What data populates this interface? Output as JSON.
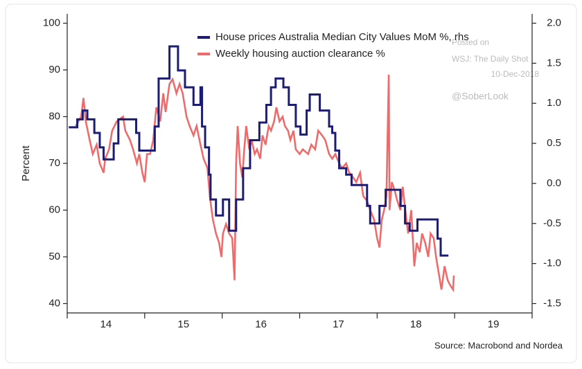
{
  "chart_data": {
    "type": "line",
    "y_label": "Percent",
    "source": "Source: Macrobond and Nordea",
    "annotations": [
      "Posted on",
      "WSJ: The Daily Shot",
      "10-Dec-2018",
      "@SoberLook"
    ],
    "xlim": [
      2014,
      2020
    ],
    "xticks": [
      {
        "value": 2014.5,
        "label": "14"
      },
      {
        "value": 2015.5,
        "label": "15"
      },
      {
        "value": 2016.5,
        "label": "16"
      },
      {
        "value": 2017.5,
        "label": "17"
      },
      {
        "value": 2018.5,
        "label": "18"
      },
      {
        "value": 2019.5,
        "label": "19"
      }
    ],
    "x_boundaries": [
      2014,
      2015,
      2016,
      2017,
      2018,
      2019,
      2020
    ],
    "ylim": [
      38,
      102
    ],
    "yticks": [
      40,
      50,
      60,
      70,
      80,
      90,
      100
    ],
    "y2lim": [
      -1.6167,
      2.1167
    ],
    "y2ticks": [
      {
        "value": -1.5,
        "label": "-1.5"
      },
      {
        "value": -1,
        "label": "-1.0"
      },
      -0.5,
      {
        "value": 0,
        "label": "0.0"
      },
      0.5,
      {
        "value": 1,
        "label": "1.0"
      },
      1.5,
      {
        "value": 2,
        "label": "2.0"
      }
    ],
    "series": [
      {
        "name": "House prices Australia Median City Values MoM %, rhs",
        "color": "#1c1c72",
        "axis": "y2",
        "step": true,
        "x": [
          2014.02,
          2014.13,
          2014.2,
          2014.26,
          2014.35,
          2014.42,
          2014.47,
          2014.6,
          2014.66,
          2014.89,
          2014.93,
          2015.13,
          2015.18,
          2015.32,
          2015.43,
          2015.52,
          2015.63,
          2015.72,
          2015.74,
          2015.78,
          2015.83,
          2015.85,
          2015.92,
          2016.01,
          2016.09,
          2016.18,
          2016.27,
          2016.36,
          2016.48,
          2016.57,
          2016.63,
          2016.69,
          2016.79,
          2016.86,
          2016.95,
          2017.01,
          2017.09,
          2017.13,
          2017.26,
          2017.38,
          2017.42,
          2017.46,
          2017.51,
          2017.6,
          2017.67,
          2017.87,
          2017.91,
          2018.03,
          2018.11,
          2018.3,
          2018.36,
          2018.42,
          2018.52,
          2018.78,
          2018.82,
          2018.92
        ],
        "values": [
          0.7,
          0.8,
          0.91,
          0.8,
          0.63,
          0.45,
          0.3,
          0.5,
          0.8,
          0.63,
          0.41,
          0.71,
          1.31,
          1.71,
          1.41,
          1.2,
          0.98,
          1.2,
          0.71,
          0.45,
          0.11,
          -0.2,
          -0.4,
          -0.2,
          -0.59,
          -0.2,
          0.19,
          0.54,
          0.76,
          0.98,
          1.2,
          1.31,
          1.2,
          0.98,
          0.71,
          0.61,
          0.91,
          1.11,
          0.91,
          0.71,
          0.63,
          0.41,
          0.19,
          0.11,
          -0.02,
          -0.28,
          -0.5,
          -0.28,
          -0.08,
          -0.28,
          -0.5,
          -0.59,
          -0.45,
          -0.69,
          -0.9,
          -0.9
        ]
      },
      {
        "name": "Weekly housing auction clearance %",
        "color": "#ef6a6a",
        "axis": "y",
        "x": [
          2014.11,
          2014.18,
          2014.21,
          2014.24,
          2014.29,
          2014.33,
          2014.38,
          2014.42,
          2014.47,
          2014.49,
          2014.54,
          2014.58,
          2014.64,
          2014.72,
          2014.75,
          2014.81,
          2014.85,
          2014.9,
          2014.93,
          2014.97,
          2015.0,
          2015.03,
          2015.07,
          2015.11,
          2015.15,
          2015.2,
          2015.24,
          2015.27,
          2015.32,
          2015.36,
          2015.41,
          2015.45,
          2015.49,
          2015.54,
          2015.58,
          2015.63,
          2015.67,
          2015.72,
          2015.76,
          2015.81,
          2015.84,
          2015.88,
          2015.92,
          2015.96,
          2015.99,
          2016.01,
          2016.05,
          2016.09,
          2016.13,
          2016.16,
          2016.18,
          2016.2,
          2016.23,
          2016.26,
          2016.28,
          2016.31,
          2016.35,
          2016.38,
          2016.42,
          2016.45,
          2016.49,
          2016.52,
          2016.56,
          2016.6,
          2016.63,
          2016.67,
          2016.7,
          2016.74,
          2016.78,
          2016.81,
          2016.85,
          2016.88,
          2016.92,
          2016.95,
          2017.0,
          2017.04,
          2017.11,
          2017.15,
          2017.2,
          2017.24,
          2017.29,
          2017.33,
          2017.38,
          2017.42,
          2017.46,
          2017.51,
          2017.55,
          2017.6,
          2017.64,
          2017.69,
          2017.73,
          2017.78,
          2017.82,
          2017.87,
          2017.91,
          2017.96,
          2018.0,
          2018.03,
          2018.06,
          2018.09,
          2018.12,
          2018.15,
          2018.16,
          2018.19,
          2018.23,
          2018.26,
          2018.3,
          2018.33,
          2018.37,
          2018.4,
          2018.44,
          2018.48,
          2018.51,
          2018.55,
          2018.58,
          2018.62,
          2018.66,
          2018.69,
          2018.73,
          2018.76,
          2018.8,
          2018.83,
          2018.87,
          2018.91,
          2018.94,
          2018.98,
          2018.99
        ],
        "values": [
          78,
          80,
          84,
          79,
          75,
          72,
          74,
          70,
          68,
          71,
          73,
          77,
          79,
          80,
          77,
          75,
          73,
          70,
          72,
          68,
          66,
          72,
          72,
          75,
          82,
          79,
          85,
          81,
          87,
          88,
          85,
          87,
          85,
          80,
          78,
          76,
          78,
          74,
          71,
          69,
          63,
          58,
          55,
          53,
          50,
          55,
          57,
          55,
          54,
          45,
          70,
          78,
          70,
          67,
          72,
          78,
          73,
          75,
          72,
          73,
          71,
          76,
          74,
          78,
          77,
          79,
          82,
          79,
          80,
          78,
          77,
          75,
          77,
          73,
          72,
          73,
          72,
          74,
          73,
          77,
          76,
          75,
          72,
          71,
          72,
          70,
          69,
          70,
          68,
          67,
          66,
          68,
          63,
          62,
          60,
          58,
          54,
          52,
          58,
          60,
          63,
          89,
          60,
          66,
          64,
          62,
          60,
          65,
          59,
          55,
          60,
          48,
          53,
          51,
          55,
          53,
          50,
          55,
          54,
          50,
          46,
          43,
          48,
          45,
          44,
          43,
          46
        ]
      }
    ]
  }
}
